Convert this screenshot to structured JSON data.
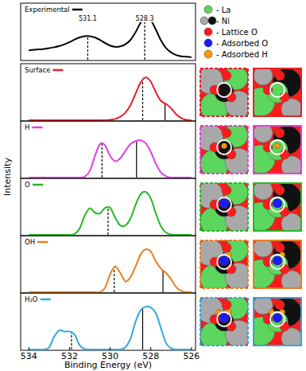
{
  "chart_data": {
    "type": "line",
    "x_label": "Binding Energy (eV)",
    "y_label": "Intensity",
    "xlim": [
      534.4,
      525.8
    ],
    "xticks": [
      534,
      532,
      530,
      528,
      526
    ],
    "ylim": [
      0,
      1.3
    ],
    "tick_labels": "x",
    "legend": "top-right",
    "x": [
      534,
      533.75,
      533.5,
      533.25,
      533,
      532.75,
      532.5,
      532.25,
      532,
      531.75,
      531.5,
      531.25,
      531,
      530.75,
      530.5,
      530.25,
      530,
      529.75,
      529.5,
      529.25,
      529,
      528.75,
      528.5,
      528.25,
      528,
      527.75,
      527.5,
      527.25,
      527,
      526.75,
      526.5,
      526.25,
      526
    ],
    "series": [
      {
        "name": "Experimental",
        "color": "#000000",
        "data_labels": true,
        "values": [
          0.22,
          0.23,
          0.24,
          0.25,
          0.27,
          0.29,
          0.32,
          0.36,
          0.41,
          0.47,
          0.52,
          0.55,
          0.55,
          0.52,
          0.46,
          0.39,
          0.33,
          0.3,
          0.31,
          0.36,
          0.46,
          0.64,
          0.86,
          0.98,
          0.92,
          0.7,
          0.45,
          0.27,
          0.17,
          0.11,
          0.08,
          0.07,
          0.06
        ],
        "lines": [
          {
            "x": 531.1,
            "height": 0.55,
            "line_style": "dashed"
          },
          {
            "x": 528.3,
            "height": 0.99,
            "line_style": "dashed"
          }
        ]
      },
      {
        "name": "Surface",
        "color": "#e8202a",
        "values": [
          0,
          0,
          0,
          0,
          0,
          0,
          0,
          0,
          0,
          0,
          0,
          0,
          0,
          0,
          0,
          0,
          0.01,
          0.03,
          0.08,
          0.18,
          0.35,
          0.62,
          0.88,
          1.0,
          0.9,
          0.65,
          0.45,
          0.38,
          0.28,
          0.14,
          0.05,
          0.01,
          0
        ],
        "lines": [
          {
            "x": 528.4,
            "height": 0.95,
            "line_style": "dashed"
          },
          {
            "x": 527.3,
            "height": 0.38,
            "line_style": "solid"
          }
        ]
      },
      {
        "name": "H",
        "color": "#e040e0",
        "values": [
          0,
          0,
          0,
          0,
          0,
          0,
          0,
          0,
          0,
          0,
          0,
          0.02,
          0.15,
          0.5,
          0.78,
          0.75,
          0.5,
          0.38,
          0.45,
          0.62,
          0.78,
          0.85,
          0.87,
          0.8,
          0.6,
          0.32,
          0.12,
          0.03,
          0,
          0,
          0,
          0,
          0
        ],
        "lines": [
          {
            "x": 530.4,
            "height": 0.78,
            "line_style": "dashed"
          },
          {
            "x": 528.7,
            "height": 0.85,
            "line_style": "solid"
          }
        ]
      },
      {
        "name": "O",
        "color": "#22bb22",
        "values": [
          0,
          0,
          0,
          0,
          0,
          0,
          0,
          0,
          0,
          0.02,
          0.15,
          0.45,
          0.62,
          0.52,
          0.5,
          0.63,
          0.63,
          0.4,
          0.22,
          0.22,
          0.38,
          0.7,
          0.95,
          1.0,
          0.85,
          0.5,
          0.2,
          0.05,
          0.01,
          0,
          0,
          0,
          0
        ],
        "lines": [
          {
            "x": 530.1,
            "height": 0.64,
            "line_style": "dashed"
          }
        ]
      },
      {
        "name": "OH",
        "color": "#e67e22",
        "values": [
          0,
          0,
          0,
          0,
          0,
          0,
          0,
          0,
          0,
          0,
          0,
          0,
          0,
          0,
          0,
          0.1,
          0.42,
          0.6,
          0.45,
          0.25,
          0.35,
          0.6,
          0.88,
          1.0,
          0.95,
          0.72,
          0.55,
          0.45,
          0.3,
          0.12,
          0.03,
          0,
          0
        ],
        "lines": [
          {
            "x": 529.8,
            "height": 0.6,
            "line_style": "dashed"
          },
          {
            "x": 527.4,
            "height": 0.5,
            "line_style": "solid"
          }
        ]
      },
      {
        "name": "H₂O",
        "color": "#2fa8e0",
        "values": [
          0,
          0,
          0,
          0,
          0.05,
          0.3,
          0.45,
          0.42,
          0.42,
          0.35,
          0.1,
          0.01,
          0,
          0,
          0,
          0,
          0,
          0,
          0,
          0.05,
          0.25,
          0.65,
          0.92,
          1.0,
          0.98,
          0.85,
          0.5,
          0.15,
          0.03,
          0,
          0,
          0,
          0
        ],
        "lines": [
          {
            "x": 531.9,
            "height": 0.42,
            "line_style": "dashed"
          },
          {
            "x": 528.4,
            "height": 0.95,
            "line_style": "solid"
          }
        ]
      }
    ],
    "atom_legend": [
      {
        "label": "- La",
        "colors": [
          "#5cd65c"
        ]
      },
      {
        "label": "- Ni",
        "colors": [
          "#a8a8a8",
          "#111111"
        ]
      },
      {
        "label": "- Lattice O",
        "colors": [
          "#ff1a1a"
        ]
      },
      {
        "label": "- Adsorbed O",
        "colors": [
          "#1a1aff"
        ]
      },
      {
        "label": "- Adsorbed H",
        "colors": [
          "#ff9900"
        ]
      }
    ]
  }
}
